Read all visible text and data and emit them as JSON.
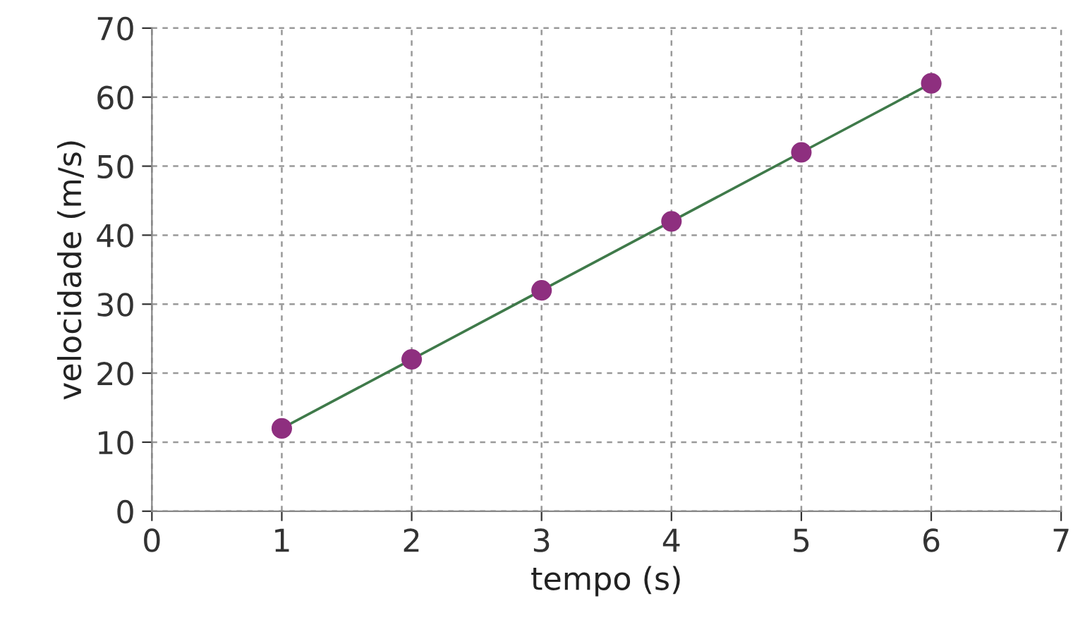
{
  "chart_data": {
    "type": "line",
    "xlabel": "tempo (s)",
    "ylabel": "velocidade (m/s)",
    "x": [
      1,
      2,
      3,
      4,
      5,
      6
    ],
    "series": [
      {
        "color": "#3f7a4a",
        "values": [
          12,
          22,
          32,
          42,
          52,
          62
        ],
        "marker": "none"
      },
      {
        "type": "scatter",
        "color": "#8e2f7f",
        "values": [
          12,
          22,
          32,
          42,
          52,
          62
        ],
        "marker": "circle"
      }
    ],
    "xlim": [
      0,
      7
    ],
    "ylim": [
      0,
      70
    ],
    "xticks": [
      0,
      1,
      2,
      3,
      4,
      5,
      6,
      7
    ],
    "yticks": [
      0,
      10,
      20,
      30,
      40,
      50,
      60,
      70
    ],
    "grid": true,
    "line_style": "solid"
  }
}
